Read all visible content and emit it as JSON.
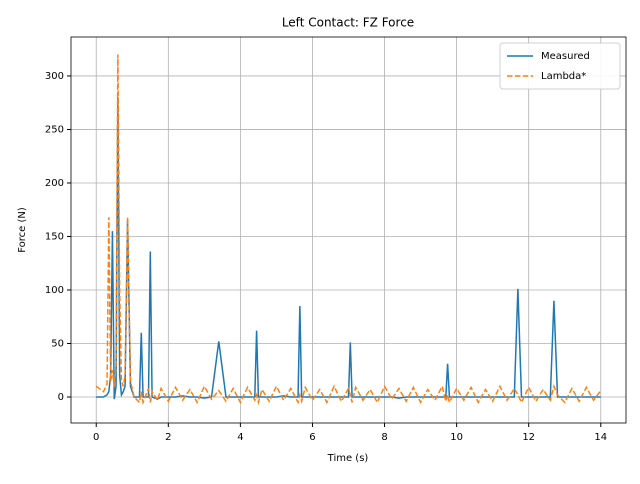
{
  "chart_data": {
    "type": "line",
    "title": "Left Contact: FZ Force",
    "x_label": "Time (s)",
    "y_label": "Force (N)",
    "x": [
      0,
      0.2,
      0.3,
      0.35,
      0.4,
      0.45,
      0.5,
      0.55,
      0.6,
      0.65,
      0.7,
      0.75,
      0.8,
      0.87,
      0.95,
      1.05,
      1.2,
      1.25,
      1.3,
      1.45,
      1.5,
      1.55,
      1.7,
      1.8,
      2.0,
      2.2,
      2.4,
      2.6,
      2.8,
      3.0,
      3.2,
      3.4,
      3.6,
      3.8,
      4.0,
      4.2,
      4.4,
      4.45,
      4.5,
      4.6,
      4.8,
      5.0,
      5.2,
      5.4,
      5.6,
      5.65,
      5.7,
      5.8,
      6.0,
      6.2,
      6.4,
      6.6,
      6.8,
      7.0,
      7.05,
      7.1,
      7.2,
      7.4,
      7.6,
      7.8,
      8.0,
      8.2,
      8.4,
      8.6,
      8.8,
      9.0,
      9.2,
      9.4,
      9.6,
      9.7,
      9.75,
      9.8,
      10.0,
      10.2,
      10.4,
      10.6,
      10.8,
      11.0,
      11.2,
      11.4,
      11.6,
      11.7,
      11.8,
      12.0,
      12.2,
      12.4,
      12.6,
      12.7,
      12.8,
      13.0,
      13.2,
      13.4,
      13.6,
      13.8,
      14.0
    ],
    "series": [
      {
        "name": "Measured",
        "color": "#1f77b4",
        "dashed": false,
        "values": [
          0,
          0,
          2,
          5,
          20,
          155,
          -2,
          10,
          280,
          20,
          2,
          5,
          10,
          165,
          10,
          0,
          0,
          60,
          0,
          0,
          136,
          0,
          -2,
          0,
          0,
          0,
          1,
          0,
          0,
          -1,
          0,
          52,
          0,
          0,
          0,
          0,
          0,
          62,
          0,
          0,
          0,
          0,
          1,
          0,
          0,
          85,
          0,
          0,
          0,
          0,
          0,
          0,
          0,
          0,
          51,
          0,
          0,
          0,
          0,
          0,
          0,
          0,
          -1,
          0,
          0,
          0,
          0,
          0,
          0,
          0,
          31,
          0,
          0,
          0,
          0,
          0,
          0,
          0,
          0,
          0,
          0,
          101,
          0,
          0,
          0,
          0,
          0,
          90,
          0,
          0,
          0,
          0,
          0,
          0,
          0
        ]
      },
      {
        "name": "Lambda*",
        "color": "#ff7f0e",
        "dashed": true,
        "values": [
          10,
          5,
          12,
          168,
          15,
          25,
          10,
          30,
          320,
          100,
          15,
          10,
          20,
          168,
          15,
          0,
          -5,
          5,
          -5,
          8,
          -5,
          5,
          -3,
          8,
          -4,
          9,
          -3,
          7,
          -5,
          10,
          -2,
          6,
          -4,
          8,
          -5,
          9,
          -3,
          2,
          -5,
          7,
          -4,
          10,
          -3,
          8,
          -5,
          2,
          -4,
          9,
          -3,
          7,
          -5,
          10,
          -4,
          8,
          2,
          -5,
          9,
          -3,
          7,
          -5,
          10,
          -2,
          8,
          -4,
          9,
          -5,
          7,
          -3,
          10,
          -4,
          2,
          -5,
          8,
          -3,
          9,
          -5,
          7,
          -4,
          10,
          -3,
          8,
          2,
          -5,
          9,
          -4,
          7,
          -3,
          10,
          2,
          -5,
          8,
          -4,
          9,
          -3,
          6
        ]
      }
    ],
    "xlim": [
      -0.7,
      14.7
    ],
    "ylim": [
      -24.3,
      336.4
    ],
    "xticks": [
      0,
      2,
      4,
      6,
      8,
      10,
      12,
      14
    ],
    "yticks": [
      0,
      50,
      100,
      150,
      200,
      250,
      300
    ],
    "grid": true,
    "legend": "upper right"
  }
}
